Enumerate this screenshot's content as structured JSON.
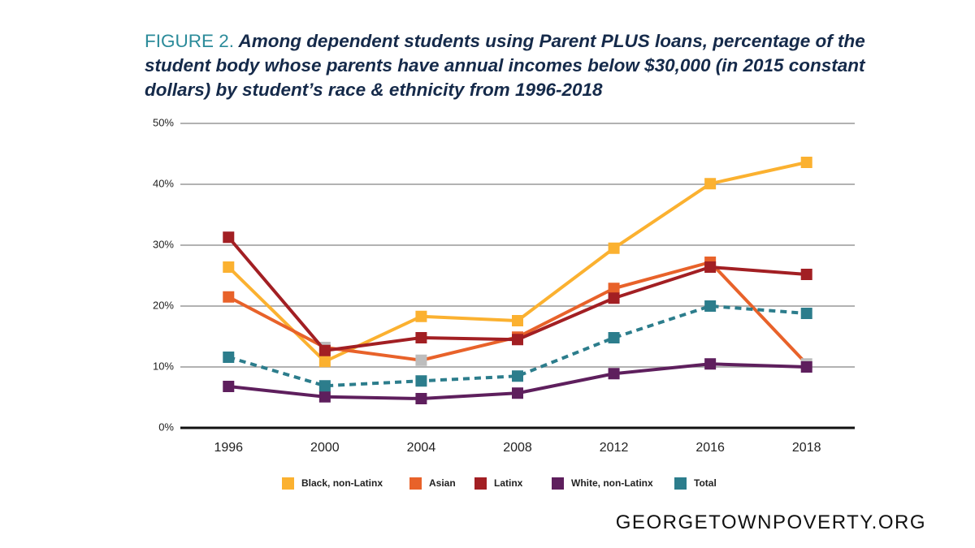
{
  "chart_data": {
    "type": "line",
    "figure_label": "FIGURE 2.",
    "title": "Among dependent students using Parent PLUS loans, percentage of the student body whose parents have annual incomes below $30,000 (in 2015 constant dollars) by student’s race & ethnicity from 1996-2018",
    "categories": [
      "1996",
      "2000",
      "2004",
      "2008",
      "2012",
      "2016",
      "2018"
    ],
    "ylim": [
      0,
      50
    ],
    "yticks": [
      {
        "value": 0,
        "label": "0%"
      },
      {
        "value": 10,
        "label": "10%"
      },
      {
        "value": 20,
        "label": "20%"
      },
      {
        "value": 30,
        "label": "30%"
      },
      {
        "value": 40,
        "label": "40%"
      },
      {
        "value": 50,
        "label": "50%"
      }
    ],
    "grid": true,
    "legend": "bottom",
    "series": [
      {
        "name": "Black, non-Latinx",
        "color": "#fbb130",
        "values": [
          26.4,
          10.9,
          18.3,
          17.6,
          29.5,
          40.1,
          43.6
        ]
      },
      {
        "name": "Asian",
        "color": "#e8622a",
        "values": [
          21.5,
          13.2,
          11.1,
          14.9,
          22.9,
          27.2,
          10.5
        ],
        "marker_colors": [
          "#e8622a",
          "#bdbdbd",
          "#bdbdbd",
          "#e8622a",
          "#e8622a",
          "#e8622a",
          "#bdbdbd"
        ]
      },
      {
        "name": "Latinx",
        "color": "#a21f23",
        "values": [
          31.3,
          12.7,
          14.8,
          14.5,
          21.3,
          26.4,
          25.2
        ]
      },
      {
        "name": "White, non-Latinx",
        "color": "#5e1f5d",
        "values": [
          6.8,
          5.1,
          4.8,
          5.7,
          8.9,
          10.5,
          10.0
        ]
      },
      {
        "name": "Total",
        "color": "#2c7d8c",
        "values": [
          11.6,
          6.9,
          7.7,
          8.5,
          14.8,
          20.0,
          18.8
        ],
        "line_style": "dashed"
      }
    ],
    "source": "GEORGETOWNPOVERTY.ORG"
  }
}
